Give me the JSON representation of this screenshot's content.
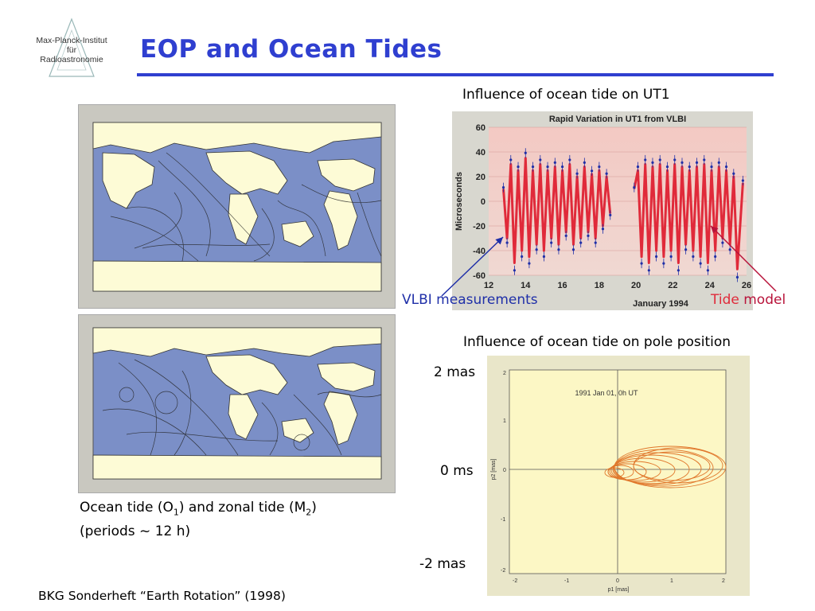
{
  "header": {
    "logo_lines": [
      "Max-Planck-Institut",
      "für",
      "Radioastronomie"
    ],
    "title": "EOP and Ocean Tides"
  },
  "left": {
    "caption_line1_pre": "Ocean tide (O",
    "caption_sub1": "1",
    "caption_line1_mid": ") and zonal tide (M",
    "caption_sub2": "2",
    "caption_line1_post": ")",
    "caption_line2": "(periods ~ 12 h)"
  },
  "ut1": {
    "heading": "Influence of ocean tide on UT1",
    "label_vlbi": "VLBI measurements",
    "label_tide": "Tide",
    "label_model": "model"
  },
  "pole": {
    "heading": "Influence of ocean tide on pole position",
    "label_top": "2 mas",
    "label_mid": "0 ms",
    "label_bottom": "-2 mas",
    "inner_title": "1991 Jan 01, 0h UT",
    "xlabel": "p1 [mas]",
    "ylabel": "p2 [mas]",
    "x_ticks": [
      "-2",
      "-1",
      "0",
      "1",
      "2"
    ],
    "y_ticks": [
      "2",
      "1",
      "0",
      "-1",
      "-2"
    ]
  },
  "footer": {
    "reference": "BKG Sonderheft “Earth Rotation” (1998)"
  },
  "colors": {
    "title_blue": "#2f3fd0",
    "vlbi_blue": "#1f2fa8",
    "tide_red": "#e02a3a",
    "model_label": "#b8133a",
    "ocean": "#7b8fc7",
    "land": "#fdfbd6"
  },
  "chart_data": {
    "type": "line",
    "title": "Rapid Variation in UT1 from VLBI",
    "xlabel": "January 1994",
    "ylabel": "Microseconds",
    "xlim": [
      12,
      26
    ],
    "ylim": [
      -60,
      60
    ],
    "x_ticks": [
      12,
      14,
      16,
      18,
      20,
      22,
      24,
      26
    ],
    "y_ticks": [
      60,
      40,
      20,
      0,
      -20,
      -40,
      -60
    ],
    "series": [
      {
        "name": "Tide model",
        "x": [
          12.8,
          13.0,
          13.2,
          13.4,
          13.6,
          13.8,
          14.0,
          14.2,
          14.4,
          14.6,
          14.8,
          15.0,
          15.2,
          15.4,
          15.6,
          15.8,
          16.0,
          16.2,
          16.4,
          16.6,
          16.8,
          17.0,
          17.2,
          17.4,
          17.6,
          17.8,
          18.0,
          18.2,
          18.4,
          18.6
        ],
        "values": [
          10,
          -30,
          30,
          -50,
          25,
          -40,
          35,
          -45,
          25,
          -35,
          30,
          -40,
          25,
          -30,
          28,
          -35,
          25,
          -25,
          30,
          -35,
          20,
          -30,
          28,
          -25,
          22,
          -30,
          25,
          -20,
          20,
          -10
        ]
      },
      {
        "name": "Tide model",
        "x": [
          19.9,
          20.1,
          20.3,
          20.5,
          20.7,
          20.9,
          21.1,
          21.3,
          21.5,
          21.7,
          21.9,
          22.1,
          22.3,
          22.5,
          22.7,
          22.9,
          23.1,
          23.3,
          23.5,
          23.7,
          23.9,
          24.1,
          24.3,
          24.5,
          24.7,
          24.9,
          25.1,
          25.3,
          25.5,
          25.8
        ],
        "values": [
          10,
          25,
          -45,
          30,
          -50,
          28,
          -40,
          30,
          -45,
          25,
          -40,
          30,
          -50,
          28,
          -35,
          25,
          -40,
          28,
          -45,
          30,
          -50,
          25,
          -40,
          28,
          -30,
          25,
          -35,
          20,
          -55,
          15
        ]
      }
    ]
  }
}
